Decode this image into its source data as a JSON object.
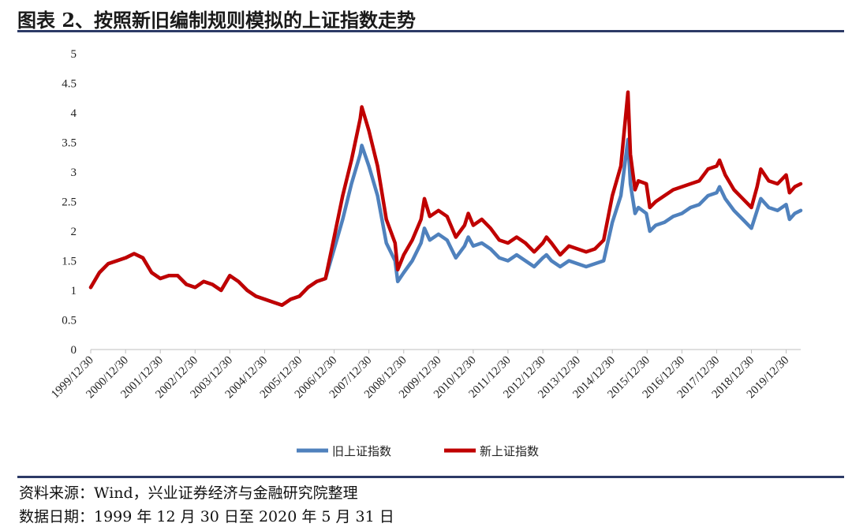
{
  "title": "图表 2、按照新旧编制规则模拟的上证指数走势",
  "footer": {
    "source": "资料来源：Wind，兴业证券经济与金融研究院整理",
    "date_range": "数据日期：1999 年 12 月 30 日至 2020 年 5 月 31 日"
  },
  "colors": {
    "old": "#4f81bd",
    "new": "#c00000",
    "rule": "#2c3a66",
    "axis": "#bfbfbf"
  },
  "chart_data": {
    "type": "line",
    "title": "",
    "xlabel": "",
    "ylabel": "",
    "ylim": [
      0,
      5
    ],
    "yticks": [
      "0",
      "0.5",
      "1",
      "1.5",
      "2",
      "2.5",
      "3",
      "3.5",
      "4",
      "4.5",
      "5"
    ],
    "xticks": [
      "1999/12/30",
      "2000/12/30",
      "2001/12/30",
      "2002/12/30",
      "2003/12/30",
      "2004/12/30",
      "2005/12/30",
      "2006/12/30",
      "2007/12/30",
      "2008/12/30",
      "2009/12/30",
      "2010/12/30",
      "2011/12/30",
      "2012/12/30",
      "2013/12/30",
      "2014/12/30",
      "2015/12/30",
      "2016/12/30",
      "2017/12/30",
      "2018/12/30",
      "2019/12/30"
    ],
    "x": [
      "1999/12/30",
      "2000/03/30",
      "2000/06/30",
      "2000/09/30",
      "2000/12/30",
      "2001/03/30",
      "2001/06/30",
      "2001/09/30",
      "2001/12/30",
      "2002/03/30",
      "2002/06/30",
      "2002/09/30",
      "2002/12/30",
      "2003/03/30",
      "2003/06/30",
      "2003/09/30",
      "2003/12/30",
      "2004/03/30",
      "2004/06/30",
      "2004/09/30",
      "2004/12/30",
      "2005/03/30",
      "2005/06/30",
      "2005/09/30",
      "2005/12/30",
      "2006/03/30",
      "2006/06/30",
      "2006/09/30",
      "2006/12/30",
      "2007/03/30",
      "2007/06/30",
      "2007/09/30",
      "2007/10/16",
      "2007/12/30",
      "2008/03/30",
      "2008/06/30",
      "2008/09/30",
      "2008/10/28",
      "2008/12/30",
      "2009/03/30",
      "2009/06/30",
      "2009/08/04",
      "2009/09/30",
      "2009/12/30",
      "2010/03/30",
      "2010/06/30",
      "2010/09/30",
      "2010/11/08",
      "2010/12/30",
      "2011/03/30",
      "2011/06/30",
      "2011/09/30",
      "2011/12/30",
      "2012/03/30",
      "2012/06/30",
      "2012/09/30",
      "2012/12/30",
      "2013/02/06",
      "2013/03/30",
      "2013/06/30",
      "2013/09/30",
      "2013/12/30",
      "2014/03/30",
      "2014/06/30",
      "2014/09/30",
      "2014/12/30",
      "2015/03/30",
      "2015/06/12",
      "2015/07/08",
      "2015/08/26",
      "2015/09/30",
      "2015/12/22",
      "2016/01/28",
      "2016/03/30",
      "2016/06/30",
      "2016/09/30",
      "2016/12/30",
      "2017/03/30",
      "2017/06/30",
      "2017/09/30",
      "2017/12/30",
      "2018/01/29",
      "2018/03/30",
      "2018/06/30",
      "2018/09/30",
      "2018/12/30",
      "2019/02/28",
      "2019/04/08",
      "2019/06/30",
      "2019/09/30",
      "2019/12/30",
      "2020/02/03",
      "2020/03/30",
      "2020/05/31"
    ],
    "series": [
      {
        "name": "旧上证指数",
        "color": "#4f81bd",
        "values": [
          1.05,
          1.3,
          1.45,
          1.5,
          1.55,
          1.62,
          1.55,
          1.3,
          1.2,
          1.25,
          1.25,
          1.1,
          1.05,
          1.15,
          1.1,
          1.0,
          1.25,
          1.15,
          1.0,
          0.9,
          0.85,
          0.8,
          0.75,
          0.85,
          0.9,
          1.05,
          1.15,
          1.2,
          1.7,
          2.2,
          2.8,
          3.3,
          3.45,
          3.1,
          2.6,
          1.8,
          1.5,
          1.15,
          1.3,
          1.5,
          1.8,
          2.05,
          1.85,
          1.95,
          1.85,
          1.55,
          1.75,
          1.9,
          1.75,
          1.8,
          1.7,
          1.55,
          1.5,
          1.6,
          1.5,
          1.4,
          1.55,
          1.6,
          1.5,
          1.4,
          1.5,
          1.45,
          1.4,
          1.45,
          1.5,
          2.15,
          2.6,
          3.55,
          2.8,
          2.3,
          2.4,
          2.3,
          2.0,
          2.1,
          2.15,
          2.25,
          2.3,
          2.4,
          2.45,
          2.6,
          2.65,
          2.75,
          2.55,
          2.35,
          2.2,
          2.05,
          2.35,
          2.55,
          2.4,
          2.35,
          2.45,
          2.2,
          2.3,
          2.35
        ]
      },
      {
        "name": "新上证指数",
        "color": "#c00000",
        "values": [
          1.05,
          1.3,
          1.45,
          1.5,
          1.55,
          1.62,
          1.55,
          1.3,
          1.2,
          1.25,
          1.25,
          1.1,
          1.05,
          1.15,
          1.1,
          1.0,
          1.25,
          1.15,
          1.0,
          0.9,
          0.85,
          0.8,
          0.75,
          0.85,
          0.9,
          1.05,
          1.15,
          1.2,
          1.9,
          2.6,
          3.2,
          3.9,
          4.1,
          3.7,
          3.1,
          2.2,
          1.8,
          1.35,
          1.6,
          1.85,
          2.2,
          2.55,
          2.25,
          2.35,
          2.25,
          1.9,
          2.1,
          2.3,
          2.1,
          2.2,
          2.05,
          1.85,
          1.8,
          1.9,
          1.8,
          1.65,
          1.8,
          1.9,
          1.8,
          1.6,
          1.75,
          1.7,
          1.65,
          1.7,
          1.85,
          2.6,
          3.1,
          4.35,
          3.3,
          2.7,
          2.85,
          2.8,
          2.4,
          2.5,
          2.6,
          2.7,
          2.75,
          2.8,
          2.85,
          3.05,
          3.1,
          3.2,
          2.95,
          2.7,
          2.55,
          2.4,
          2.75,
          3.05,
          2.85,
          2.8,
          2.95,
          2.65,
          2.75,
          2.8
        ]
      }
    ],
    "legend": "bottom",
    "grid": false
  }
}
